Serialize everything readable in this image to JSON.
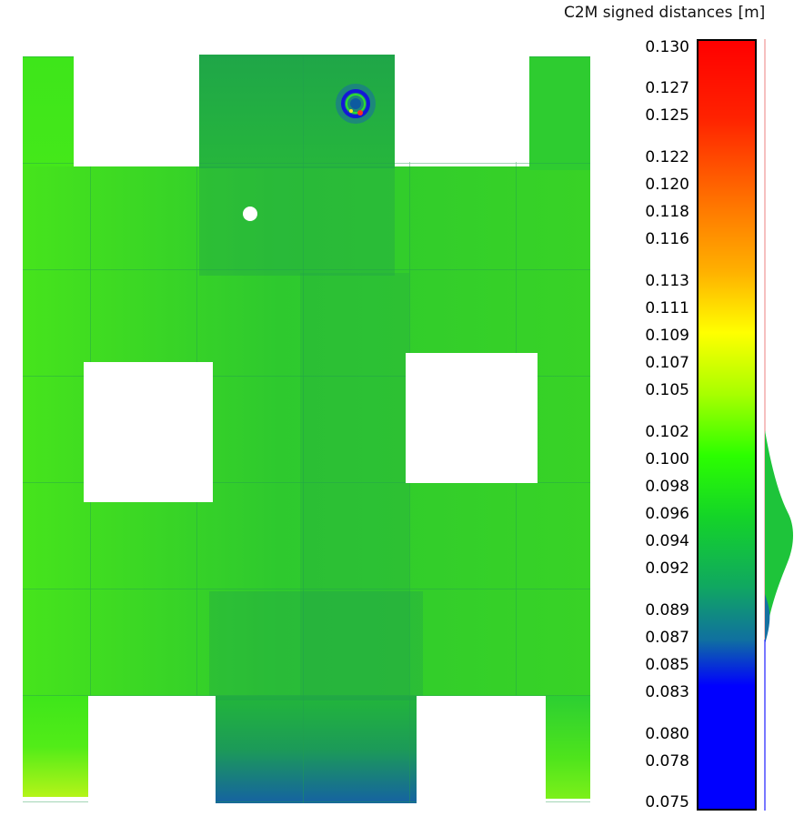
{
  "scale": {
    "title": "C2M signed distances",
    "unit": "[m]",
    "ticks": [
      "0.130",
      "0.127",
      "0.125",
      "0.122",
      "0.120",
      "0.118",
      "0.116",
      "0.113",
      "0.111",
      "0.109",
      "0.107",
      "0.105",
      "0.102",
      "0.100",
      "0.098",
      "0.096",
      "0.094",
      "0.092",
      "0.089",
      "0.087",
      "0.085",
      "0.083",
      "0.080",
      "0.078",
      "0.075"
    ],
    "range": [
      0.075,
      0.13
    ],
    "colors": {
      "high": "#ff0000",
      "mid_high": "#ffff00",
      "mid": "#2cff00",
      "mid_low": "#10a860",
      "low": "#0000ff"
    }
  }
}
